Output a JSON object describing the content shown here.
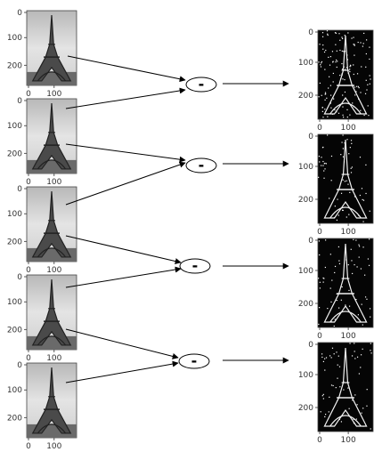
{
  "axes": {
    "left_y_ticks": [
      "0",
      "100",
      "200"
    ],
    "left_x_ticks": [
      "0",
      "100"
    ],
    "right_y_ticks": [
      "0",
      "100",
      "200"
    ],
    "right_x_ticks": [
      "0",
      "100"
    ]
  },
  "operation": {
    "symbol": "-"
  },
  "input_frames": [
    {
      "name": "frame-1"
    },
    {
      "name": "frame-2"
    },
    {
      "name": "frame-3"
    },
    {
      "name": "frame-4"
    },
    {
      "name": "frame-5"
    }
  ],
  "output_frames": [
    {
      "name": "difference-1"
    },
    {
      "name": "difference-2"
    },
    {
      "name": "difference-3"
    },
    {
      "name": "difference-4"
    }
  ],
  "colors": {
    "line": "#000000",
    "input_sky": "#d6d6d6",
    "output_bg": "#050505"
  }
}
